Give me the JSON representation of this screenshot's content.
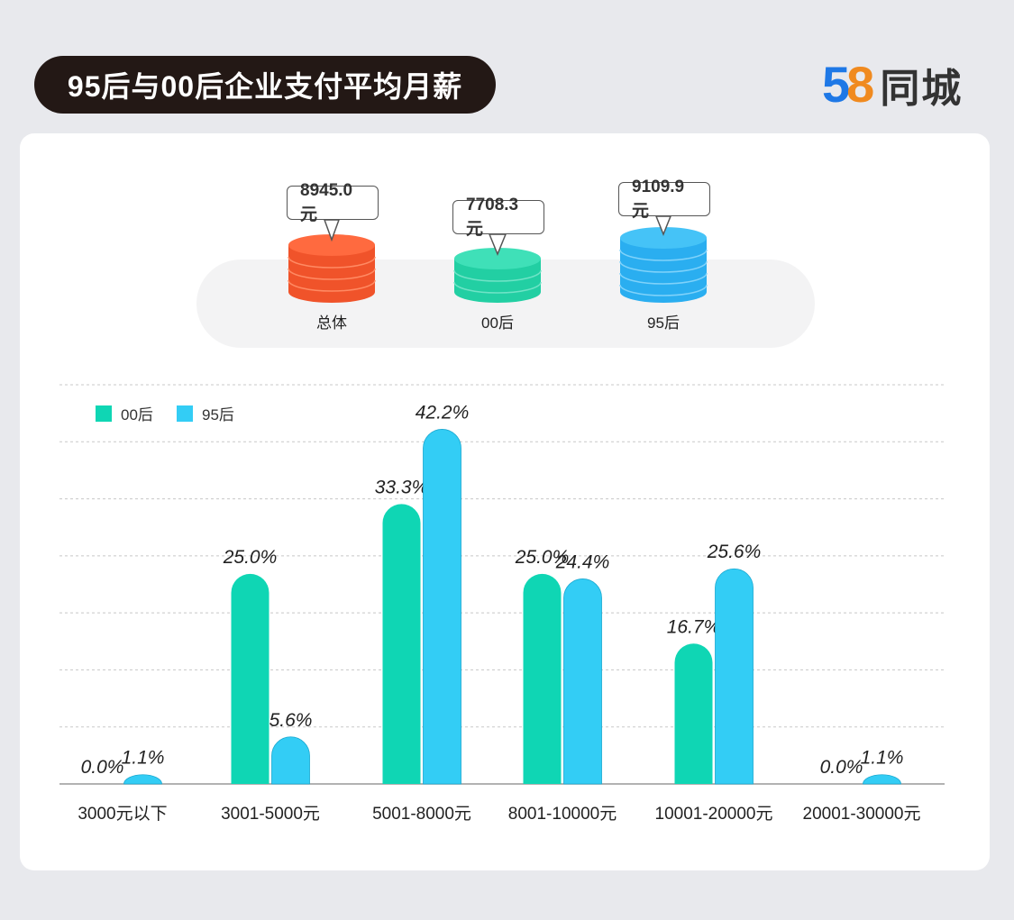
{
  "title": "95后与00后企业支付平均月薪",
  "brand": {
    "digit_5": "5",
    "digit_8": "8",
    "name": "同城"
  },
  "averages": [
    {
      "label": "总体",
      "value_text": "8945.0元",
      "color": "#f0532a"
    },
    {
      "label": "00后",
      "value_text": "7708.3元",
      "color": "#22cfa3"
    },
    {
      "label": "95后",
      "value_text": "9109.9元",
      "color": "#2aaef0"
    }
  ],
  "chart_data": {
    "type": "bar",
    "categories": [
      "3000元以下",
      "3001-5000元",
      "5001-8000元",
      "8001-10000元",
      "10001-20000元",
      "20001-30000元"
    ],
    "series": [
      {
        "name": "00后",
        "values": [
          0.0,
          25.0,
          33.3,
          25.0,
          16.7,
          0.0
        ],
        "labels": [
          "0.0%",
          "25.0%",
          "33.3%",
          "25.0%",
          "16.7%",
          "0.0%"
        ],
        "color": "#0fd6b4"
      },
      {
        "name": "95后",
        "values": [
          1.1,
          5.6,
          42.2,
          24.4,
          25.6,
          1.1
        ],
        "labels": [
          "1.1%",
          "5.6%",
          "42.2%",
          "24.4%",
          "25.6%",
          "1.1%"
        ],
        "color": "#33cdf5"
      }
    ],
    "ylim": [
      0,
      47.5
    ],
    "grid": true,
    "legend": "top-left"
  }
}
